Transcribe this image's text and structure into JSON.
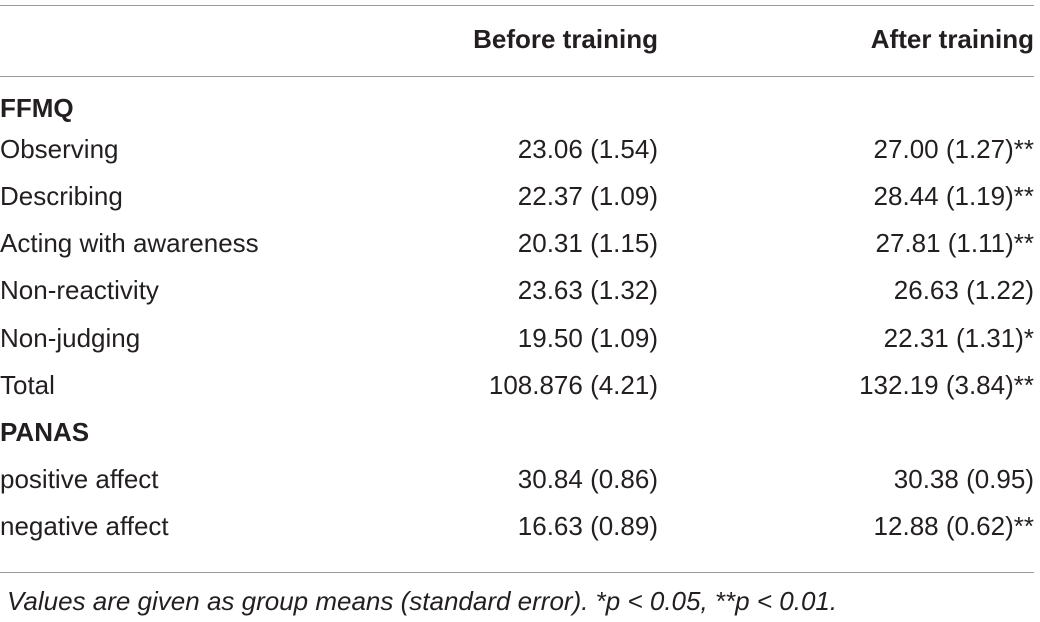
{
  "table": {
    "headers": {
      "label": "",
      "before": "Before training",
      "after": "After training"
    },
    "sections": [
      {
        "title": "FFMQ",
        "rows": [
          {
            "label": "Observing",
            "before": "23.06 (1.54)",
            "after": "27.00 (1.27)**"
          },
          {
            "label": "Describing",
            "before": "22.37 (1.09)",
            "after": "28.44 (1.19)**"
          },
          {
            "label": "Acting with awareness",
            "before": "20.31 (1.15)",
            "after": "27.81 (1.11)**"
          },
          {
            "label": "Non-reactivity",
            "before": "23.63 (1.32)",
            "after": "26.63 (1.22)"
          },
          {
            "label": "Non-judging",
            "before": "19.50 (1.09)",
            "after": "22.31 (1.31)*"
          },
          {
            "label": "Total",
            "before": "108.876 (4.21)",
            "after": "132.19 (3.84)**"
          }
        ]
      },
      {
        "title": "PANAS",
        "rows": [
          {
            "label": "positive affect",
            "before": "30.84 (0.86)",
            "after": "30.38 (0.95)"
          },
          {
            "label": "negative affect",
            "before": "16.63 (0.89)",
            "after": "12.88 (0.62)**"
          }
        ]
      }
    ],
    "footnote": "Values are given as group means (standard error). *p < 0.05, **p < 0.01."
  }
}
